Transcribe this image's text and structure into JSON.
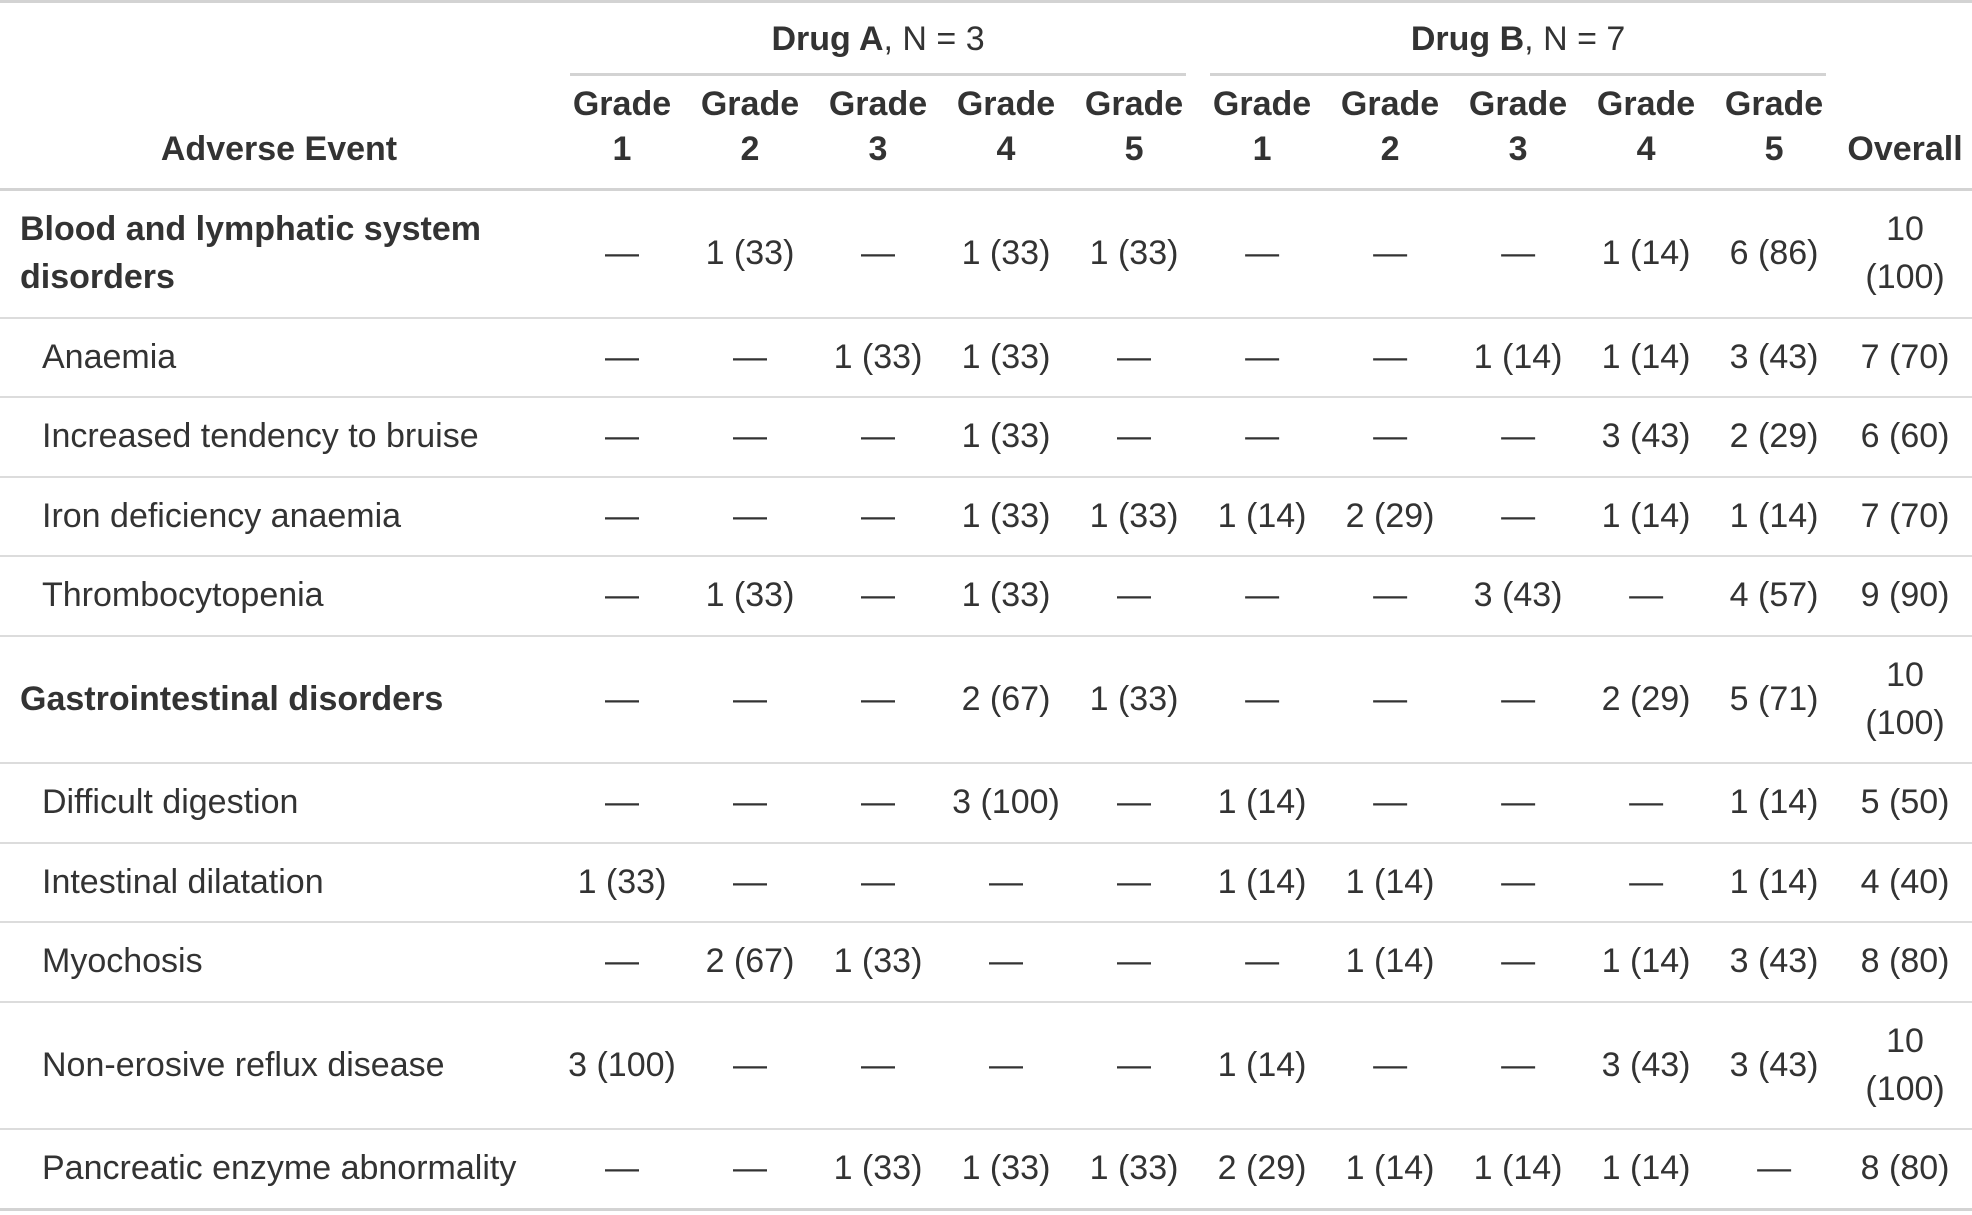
{
  "table": {
    "stub_label": "Adverse Event",
    "overall_label": "Overall",
    "spanners": [
      {
        "drug": "Drug A",
        "n": ", N = 3"
      },
      {
        "drug": "Drug B",
        "n": ", N = 7"
      }
    ],
    "grade_labels": [
      "Grade 1",
      "Grade 2",
      "Grade 3",
      "Grade 4",
      "Grade 5"
    ],
    "empty_cell": "—",
    "rows": [
      {
        "label": "Blood and lymphatic system disorders",
        "section": true,
        "drug_a": [
          "—",
          "1 (33)",
          "—",
          "1 (33)",
          "1 (33)"
        ],
        "drug_b": [
          "—",
          "—",
          "—",
          "1 (14)",
          "6 (86)"
        ],
        "overall": "10 (100)"
      },
      {
        "label": "Anaemia",
        "section": false,
        "drug_a": [
          "—",
          "—",
          "1 (33)",
          "1 (33)",
          "—"
        ],
        "drug_b": [
          "—",
          "—",
          "1 (14)",
          "1 (14)",
          "3 (43)"
        ],
        "overall": "7 (70)"
      },
      {
        "label": "Increased tendency to bruise",
        "section": false,
        "drug_a": [
          "—",
          "—",
          "—",
          "1 (33)",
          "—"
        ],
        "drug_b": [
          "—",
          "—",
          "—",
          "3 (43)",
          "2 (29)"
        ],
        "overall": "6 (60)"
      },
      {
        "label": "Iron deficiency anaemia",
        "section": false,
        "drug_a": [
          "—",
          "—",
          "—",
          "1 (33)",
          "1 (33)"
        ],
        "drug_b": [
          "1 (14)",
          "2 (29)",
          "—",
          "1 (14)",
          "1 (14)"
        ],
        "overall": "7 (70)"
      },
      {
        "label": "Thrombocytopenia",
        "section": false,
        "drug_a": [
          "—",
          "1 (33)",
          "—",
          "1 (33)",
          "—"
        ],
        "drug_b": [
          "—",
          "—",
          "3 (43)",
          "—",
          "4 (57)"
        ],
        "overall": "9 (90)"
      },
      {
        "label": "Gastrointestinal disorders",
        "section": true,
        "drug_a": [
          "—",
          "—",
          "—",
          "2 (67)",
          "1 (33)"
        ],
        "drug_b": [
          "—",
          "—",
          "—",
          "2 (29)",
          "5 (71)"
        ],
        "overall": "10 (100)"
      },
      {
        "label": "Difficult digestion",
        "section": false,
        "drug_a": [
          "—",
          "—",
          "—",
          "3 (100)",
          "—"
        ],
        "drug_b": [
          "1 (14)",
          "—",
          "—",
          "—",
          "1 (14)"
        ],
        "overall": "5 (50)"
      },
      {
        "label": "Intestinal dilatation",
        "section": false,
        "drug_a": [
          "1 (33)",
          "—",
          "—",
          "—",
          "—"
        ],
        "drug_b": [
          "1 (14)",
          "1 (14)",
          "—",
          "—",
          "1 (14)"
        ],
        "overall": "4 (40)"
      },
      {
        "label": "Myochosis",
        "section": false,
        "drug_a": [
          "—",
          "2 (67)",
          "1 (33)",
          "—",
          "—"
        ],
        "drug_b": [
          "—",
          "1 (14)",
          "—",
          "1 (14)",
          "3 (43)"
        ],
        "overall": "8 (80)"
      },
      {
        "label": "Non-erosive reflux disease",
        "section": false,
        "drug_a": [
          "3 (100)",
          "—",
          "—",
          "—",
          "—"
        ],
        "drug_b": [
          "1 (14)",
          "—",
          "—",
          "3 (43)",
          "3 (43)"
        ],
        "overall": "10 (100)"
      },
      {
        "label": "Pancreatic enzyme abnormality",
        "section": false,
        "drug_a": [
          "—",
          "—",
          "1 (33)",
          "1 (33)",
          "1 (33)"
        ],
        "drug_b": [
          "2 (29)",
          "1 (14)",
          "1 (14)",
          "1 (14)",
          "—"
        ],
        "overall": "8 (80)"
      }
    ]
  },
  "colors": {
    "text": "#333333",
    "border_heavy": "#D3D3D3",
    "border_light": "#DCDCDC",
    "background": "#FFFFFF"
  }
}
